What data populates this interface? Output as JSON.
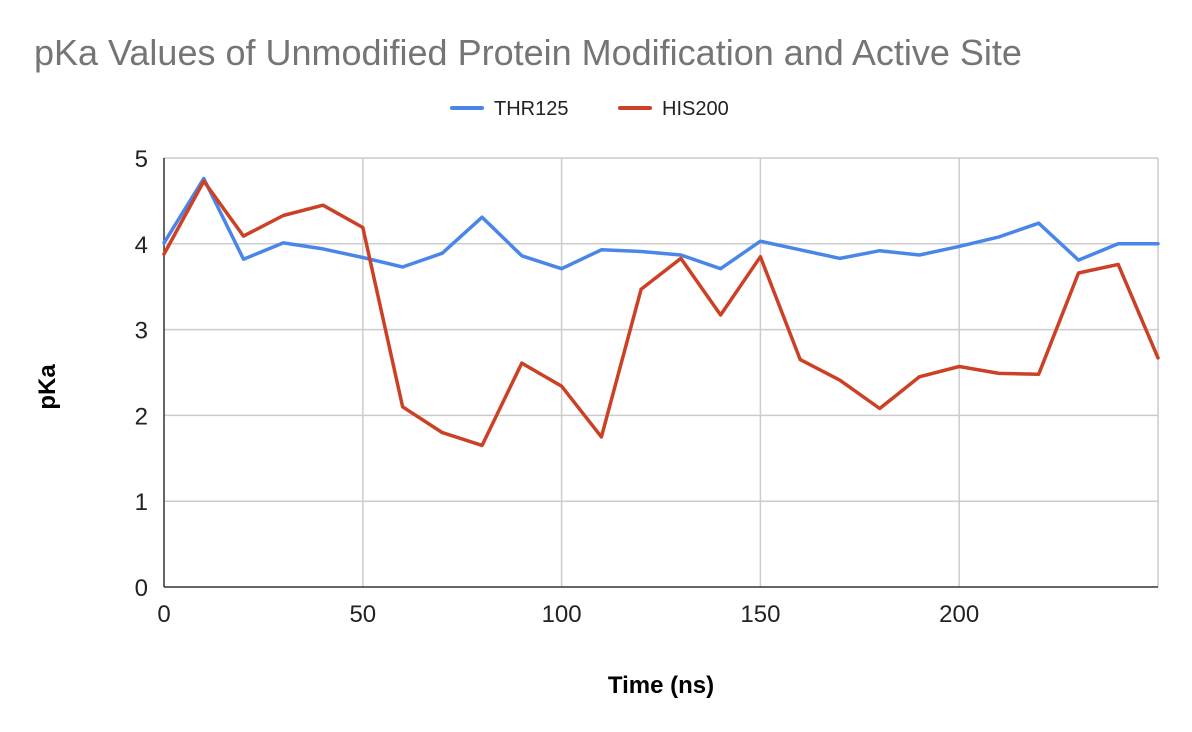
{
  "chart_data": {
    "type": "line",
    "title": "pKa Values of Unmodified Protein Modification and Active Site",
    "xlabel": "Time (ns)",
    "ylabel": "pKa",
    "xlim": [
      0,
      250
    ],
    "ylim": [
      0,
      5
    ],
    "x_ticks": [
      0,
      50,
      100,
      150,
      200
    ],
    "y_ticks": [
      0,
      1,
      2,
      3,
      4,
      5
    ],
    "grid": true,
    "legend_position": "top",
    "x": [
      0,
      10,
      20,
      30,
      40,
      50,
      60,
      70,
      80,
      90,
      100,
      110,
      120,
      130,
      140,
      150,
      160,
      170,
      180,
      190,
      200,
      210,
      220,
      230,
      240,
      250
    ],
    "series": [
      {
        "name": "THR125",
        "color": "#4a86e8",
        "values": [
          4.01,
          4.76,
          3.82,
          4.01,
          3.94,
          3.84,
          3.73,
          3.89,
          4.31,
          3.86,
          3.71,
          3.93,
          3.91,
          3.87,
          3.71,
          4.03,
          3.93,
          3.83,
          3.92,
          3.87,
          3.97,
          4.08,
          4.24,
          3.81,
          4.0,
          4.0
        ]
      },
      {
        "name": "HIS200",
        "color": "#cc4125",
        "values": [
          3.88,
          4.73,
          4.09,
          4.33,
          4.45,
          4.19,
          2.1,
          1.8,
          1.65,
          2.61,
          2.34,
          1.75,
          3.47,
          3.83,
          3.17,
          3.85,
          2.65,
          2.41,
          2.08,
          2.45,
          2.57,
          2.49,
          2.48,
          3.66,
          3.76,
          2.67
        ]
      }
    ]
  }
}
